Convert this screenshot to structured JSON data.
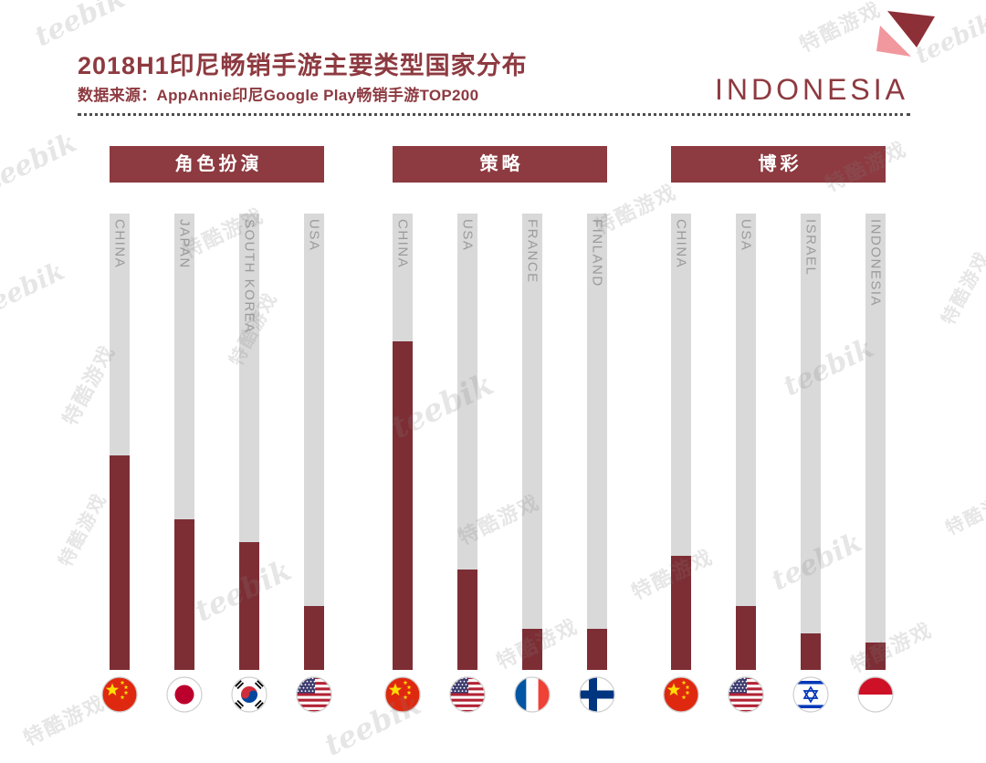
{
  "page": {
    "title": "2018H1印尼畅销手游主要类型国家分布",
    "subtitle": "数据来源：AppAnnie印尼Google Play畅销手游TOP200",
    "brand": "INDONESIA"
  },
  "watermark": {
    "latin": "teebik",
    "cjk": "特酷游戏"
  },
  "chart_data": {
    "type": "bar",
    "title": "2018H1印尼畅销手游主要类型国家分布",
    "source": "数据来源：AppAnnie印尼Google Play畅销手游TOP200",
    "ylim": [
      0,
      100
    ],
    "value_unit": "percent of column height (estimated from chart)",
    "groups": [
      {
        "label": "角色扮演",
        "categories": [
          "CHINA",
          "JAPAN",
          "SOUTH KOREA",
          "USA"
        ],
        "flags": [
          "china",
          "japan",
          "south-korea",
          "usa"
        ],
        "values": [
          47,
          33,
          28,
          14
        ]
      },
      {
        "label": "策略",
        "categories": [
          "CHINA",
          "USA",
          "FRANCE",
          "FINLAND"
        ],
        "flags": [
          "china",
          "usa",
          "france",
          "finland"
        ],
        "values": [
          72,
          22,
          9,
          9
        ]
      },
      {
        "label": "博彩",
        "categories": [
          "CHINA",
          "USA",
          "ISRAEL",
          "INDONESIA"
        ],
        "flags": [
          "china",
          "usa",
          "israel",
          "indonesia"
        ],
        "values": [
          25,
          14,
          8,
          6
        ]
      }
    ],
    "colors": {
      "accent": "#8d3a40",
      "bar": "#7d2e34",
      "track": "#d9d9d9",
      "header_bg": "#8d3a40",
      "label": "#9b9b9b"
    }
  }
}
